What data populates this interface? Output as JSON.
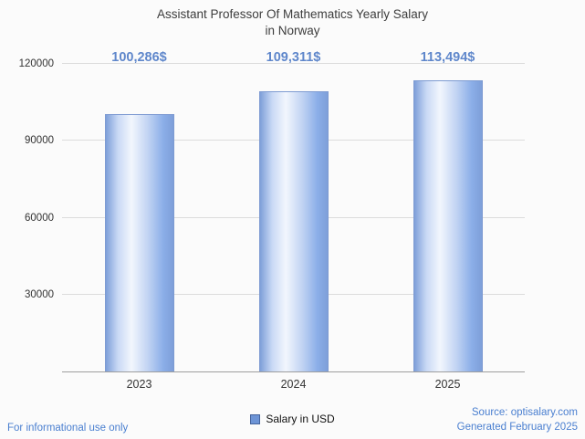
{
  "title": {
    "line1": "Assistant Professor Of Mathematics Yearly Salary",
    "line2": "in Norway"
  },
  "chart_data": {
    "type": "bar",
    "title": "Assistant Professor Of Mathematics Yearly Salary in Norway",
    "categories": [
      "2023",
      "2024",
      "2025"
    ],
    "values": [
      100286,
      109311,
      113494
    ],
    "value_labels": [
      "100,286$",
      "109,311$",
      "113,494$"
    ],
    "xlabel": "",
    "ylabel": "",
    "ylim": [
      0,
      120000
    ],
    "yticks": [
      30000,
      60000,
      90000,
      120000
    ],
    "grid": true,
    "legend_entries": [
      "Salary in USD"
    ],
    "legend_position": "bottom",
    "bar_gradient_colors": [
      "#7e9fd9",
      "#f2f6fd",
      "#7e9fd9"
    ],
    "value_label_color": "#5f87cb"
  },
  "legend": {
    "label": "Salary in USD",
    "swatch_color": "#6d94d6"
  },
  "footer": {
    "left": "For informational use only",
    "source": "Source: optisalary.com",
    "generated": "Generated February 2025"
  }
}
